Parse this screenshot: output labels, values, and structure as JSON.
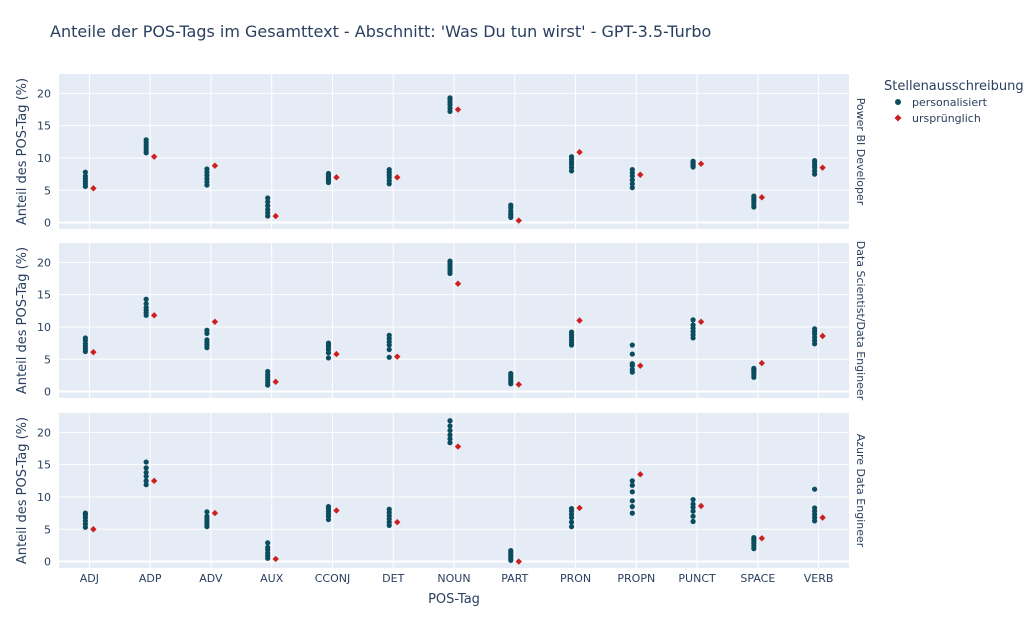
{
  "chart_data": {
    "type": "scatter",
    "title": "Anteile der POS-Tags im Gesamttext - Abschnitt: 'Was Du tun wirst' - GPT-3.5-Turbo",
    "xlabel": "POS-Tag",
    "ylabel": "Anteil des POS-Tag (%)",
    "categories": [
      "ADJ",
      "ADP",
      "ADV",
      "AUX",
      "CCONJ",
      "DET",
      "NOUN",
      "PART",
      "PRON",
      "PROPN",
      "PUNCT",
      "SPACE",
      "VERB"
    ],
    "ylim": [
      -1,
      23
    ],
    "yticks": [
      0,
      5,
      10,
      15,
      20
    ],
    "legend": {
      "title": "Stellenausschreibung",
      "placement": "right",
      "entries": [
        {
          "name": "personalisiert",
          "color": "#0b4d5e",
          "symbol": "circle"
        },
        {
          "name": "ursprünglich",
          "color": "#cc1f1f",
          "symbol": "diamond"
        }
      ]
    },
    "facets": [
      {
        "label": "Power BI Developer",
        "personalisiert": [
          [
            5.6,
            6.0,
            6.4,
            6.8,
            7.2,
            7.8
          ],
          [
            10.8,
            11.2,
            11.6,
            12.0,
            12.4,
            12.8
          ],
          [
            5.8,
            6.3,
            6.8,
            7.3,
            7.8,
            8.3
          ],
          [
            1.0,
            1.5,
            2.0,
            2.6,
            3.2,
            3.8
          ],
          [
            6.2,
            6.5,
            6.8,
            7.1,
            7.4,
            7.6
          ],
          [
            6.0,
            6.5,
            7.0,
            7.4,
            7.8,
            8.2
          ],
          [
            17.2,
            17.7,
            18.2,
            18.6,
            19.0,
            19.3
          ],
          [
            0.8,
            1.1,
            1.4,
            1.8,
            2.3,
            2.7
          ],
          [
            8.0,
            8.5,
            9.0,
            9.4,
            9.8,
            10.2
          ],
          [
            5.4,
            6.0,
            6.6,
            7.2,
            7.7,
            8.2
          ],
          [
            8.6,
            8.8,
            9.0,
            9.2,
            9.4,
            9.5
          ],
          [
            2.4,
            2.8,
            3.2,
            3.5,
            3.8,
            4.1
          ],
          [
            7.5,
            8.0,
            8.5,
            8.9,
            9.3,
            9.6
          ]
        ],
        "urspruenglich": [
          5.3,
          10.2,
          8.8,
          1.0,
          7.0,
          7.0,
          17.5,
          0.3,
          10.9,
          7.4,
          9.1,
          3.9,
          8.5
        ]
      },
      {
        "label": "Data Scientist/Data Engineer",
        "personalisiert": [
          [
            6.2,
            6.6,
            7.0,
            7.4,
            7.9,
            8.3
          ],
          [
            11.8,
            12.2,
            12.6,
            13.0,
            13.6,
            14.3
          ],
          [
            6.8,
            7.2,
            7.6,
            8.0,
            9.0,
            9.5
          ],
          [
            1.0,
            1.4,
            1.8,
            2.2,
            2.6,
            3.1
          ],
          [
            5.2,
            6.0,
            6.5,
            6.9,
            7.2,
            7.5
          ],
          [
            5.3,
            6.5,
            7.2,
            7.7,
            8.2,
            8.7
          ],
          [
            18.3,
            18.7,
            19.1,
            19.5,
            19.9,
            20.2
          ],
          [
            1.2,
            1.5,
            1.8,
            2.2,
            2.5,
            2.8
          ],
          [
            7.2,
            7.6,
            8.0,
            8.4,
            8.8,
            9.2
          ],
          [
            3.0,
            3.4,
            4.0,
            4.3,
            5.8,
            7.2
          ],
          [
            8.3,
            8.8,
            9.3,
            9.8,
            10.3,
            11.1
          ],
          [
            2.2,
            2.6,
            2.9,
            3.2,
            3.4,
            3.6
          ],
          [
            7.4,
            7.9,
            8.4,
            8.9,
            9.3,
            9.7
          ]
        ],
        "urspruenglich": [
          6.1,
          11.8,
          10.8,
          1.5,
          5.8,
          5.4,
          16.7,
          1.1,
          11.0,
          4.0,
          10.8,
          4.4,
          8.6
        ]
      },
      {
        "label": "Azure Data Engineer",
        "personalisiert": [
          [
            5.3,
            5.8,
            6.3,
            6.8,
            7.2,
            7.5
          ],
          [
            11.9,
            12.5,
            13.2,
            13.8,
            14.5,
            15.4
          ],
          [
            5.4,
            5.8,
            6.2,
            6.6,
            7.0,
            7.7
          ],
          [
            0.5,
            0.9,
            1.3,
            1.8,
            2.2,
            2.9
          ],
          [
            6.5,
            7.0,
            7.4,
            7.8,
            8.2,
            8.5
          ],
          [
            5.6,
            6.1,
            6.6,
            7.1,
            7.6,
            8.1
          ],
          [
            18.4,
            19.0,
            19.6,
            20.3,
            21.0,
            21.8
          ],
          [
            0.2,
            0.5,
            0.8,
            1.1,
            1.4,
            1.7
          ],
          [
            5.4,
            6.1,
            6.8,
            7.3,
            7.8,
            8.2
          ],
          [
            7.5,
            8.5,
            9.4,
            10.8,
            11.8,
            12.5
          ],
          [
            6.2,
            7.0,
            7.8,
            8.4,
            8.9,
            9.6
          ],
          [
            2.0,
            2.4,
            2.8,
            3.1,
            3.4,
            3.7
          ],
          [
            6.3,
            6.8,
            7.3,
            7.8,
            8.3,
            11.2
          ]
        ],
        "urspruenglich": [
          5.0,
          12.5,
          7.5,
          0.4,
          7.9,
          6.1,
          17.8,
          0.0,
          8.3,
          13.5,
          8.6,
          3.6,
          6.8
        ]
      }
    ]
  }
}
